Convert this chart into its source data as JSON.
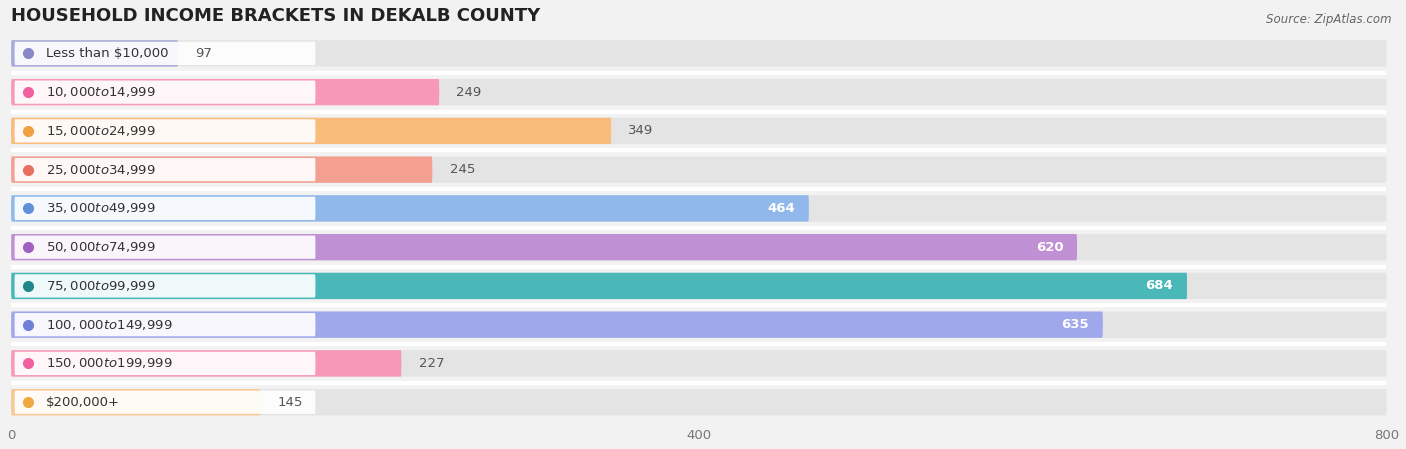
{
  "title": "HOUSEHOLD INCOME BRACKETS IN DEKALB COUNTY",
  "source": "Source: ZipAtlas.com",
  "categories": [
    "Less than $10,000",
    "$10,000 to $14,999",
    "$15,000 to $24,999",
    "$25,000 to $34,999",
    "$35,000 to $49,999",
    "$50,000 to $74,999",
    "$75,000 to $99,999",
    "$100,000 to $149,999",
    "$150,000 to $199,999",
    "$200,000+"
  ],
  "values": [
    97,
    249,
    349,
    245,
    464,
    620,
    684,
    635,
    227,
    145
  ],
  "bar_colors": [
    "#aaaadc",
    "#f898b8",
    "#f9bc7a",
    "#f4a090",
    "#90b8ea",
    "#c090d4",
    "#4ab8b8",
    "#a0a8ec",
    "#f898b8",
    "#f9c890"
  ],
  "dot_colors": [
    "#8888c8",
    "#f060a0",
    "#f0a040",
    "#e87060",
    "#6090d8",
    "#a060c0",
    "#208888",
    "#7080d8",
    "#f060a0",
    "#f0a840"
  ],
  "xlim": [
    0,
    800
  ],
  "xticks": [
    0,
    400,
    800
  ],
  "bg_color": "#f2f2f2",
  "bar_bg_color": "#e4e4e4",
  "label_bg_color": "#ffffff",
  "title_fontsize": 13,
  "label_fontsize": 9.5,
  "value_fontsize": 9.5
}
